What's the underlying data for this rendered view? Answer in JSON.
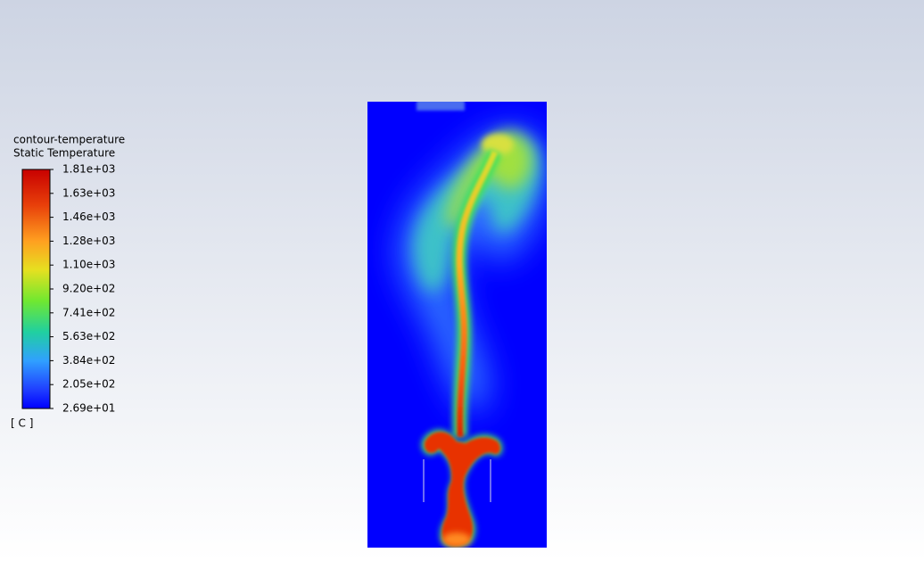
{
  "legend": {
    "title": "contour-temperature",
    "subtitle": "Static Temperature",
    "ticks": [
      "1.81e+03",
      "1.63e+03",
      "1.46e+03",
      "1.28e+03",
      "1.10e+03",
      "9.20e+02",
      "7.41e+02",
      "5.63e+02",
      "3.84e+02",
      "2.05e+02",
      "2.69e+01"
    ],
    "unit": "[ C ]"
  }
}
